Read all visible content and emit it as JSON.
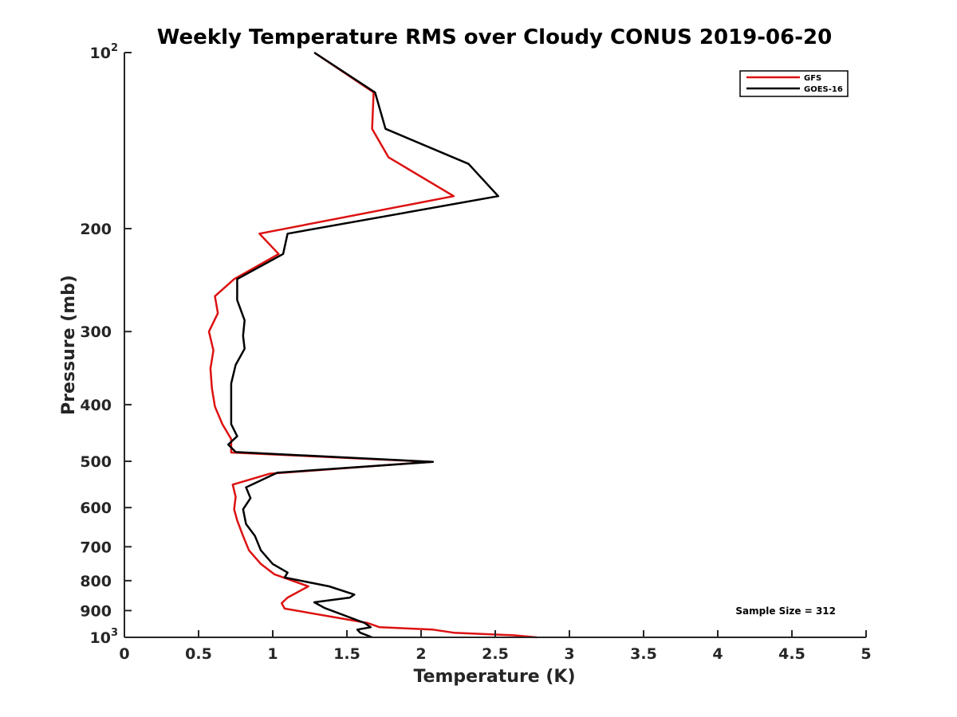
{
  "chart_data": {
    "type": "line",
    "title": "Weekly Temperature RMS over Cloudy CONUS 2019-06-20",
    "xlabel": "Temperature (K)",
    "ylabel": "Pressure (mb)",
    "xlim": [
      0,
      5
    ],
    "ylim": [
      1000,
      100
    ],
    "y_scale": "log",
    "y_reversed": true,
    "x_ticks": [
      "0",
      "0.5",
      "1",
      "1.5",
      "2",
      "2.5",
      "3",
      "3.5",
      "4",
      "4.5",
      "5"
    ],
    "x_tick_values": [
      0,
      0.5,
      1,
      1.5,
      2,
      2.5,
      3,
      3.5,
      4,
      4.5,
      5
    ],
    "y_ticks": [
      {
        "value": 100,
        "base": "10",
        "exp": "2"
      },
      {
        "value": 200,
        "label": "200"
      },
      {
        "value": 300,
        "label": "300"
      },
      {
        "value": 400,
        "label": "400"
      },
      {
        "value": 500,
        "label": "500"
      },
      {
        "value": 600,
        "label": "600"
      },
      {
        "value": 700,
        "label": "700"
      },
      {
        "value": 800,
        "label": "800"
      },
      {
        "value": 900,
        "label": "900"
      },
      {
        "value": 1000,
        "base": "10",
        "exp": "3"
      }
    ],
    "legend_position": "top-right",
    "annotation": "Sample Size = 312",
    "series": [
      {
        "name": "GFS",
        "color": "#dd1111",
        "points": [
          [
            1.28,
            100
          ],
          [
            1.68,
            117
          ],
          [
            1.67,
            135
          ],
          [
            1.78,
            151
          ],
          [
            2.22,
            176
          ],
          [
            0.91,
            204
          ],
          [
            1.04,
            221
          ],
          [
            0.74,
            244
          ],
          [
            0.61,
            261
          ],
          [
            0.63,
            279
          ],
          [
            0.57,
            300
          ],
          [
            0.6,
            323
          ],
          [
            0.58,
            347
          ],
          [
            0.59,
            375
          ],
          [
            0.61,
            403
          ],
          [
            0.66,
            432
          ],
          [
            0.72,
            458
          ],
          [
            0.72,
            475
          ],
          [
            0.72,
            483
          ],
          [
            2.07,
            501
          ],
          [
            0.98,
            525
          ],
          [
            0.73,
            548
          ],
          [
            0.75,
            575
          ],
          [
            0.74,
            604
          ],
          [
            0.76,
            631
          ],
          [
            0.8,
            671
          ],
          [
            0.84,
            710
          ],
          [
            0.92,
            749
          ],
          [
            1.01,
            780
          ],
          [
            1.24,
            818
          ],
          [
            1.1,
            855
          ],
          [
            1.06,
            874
          ],
          [
            1.08,
            893
          ],
          [
            1.64,
            945
          ],
          [
            1.72,
            961
          ],
          [
            2.08,
            970
          ],
          [
            2.22,
            982
          ],
          [
            2.62,
            992
          ],
          [
            2.78,
            1000
          ]
        ]
      },
      {
        "name": "GOES-16",
        "color": "#000000",
        "points": [
          [
            1.28,
            100
          ],
          [
            1.69,
            117
          ],
          [
            1.76,
            135
          ],
          [
            2.32,
            155
          ],
          [
            2.52,
            176
          ],
          [
            1.1,
            204
          ],
          [
            1.07,
            221
          ],
          [
            0.76,
            244
          ],
          [
            0.76,
            265
          ],
          [
            0.81,
            287
          ],
          [
            0.8,
            305
          ],
          [
            0.81,
            321
          ],
          [
            0.75,
            342
          ],
          [
            0.72,
            368
          ],
          [
            0.72,
            403
          ],
          [
            0.72,
            432
          ],
          [
            0.76,
            453
          ],
          [
            0.7,
            468
          ],
          [
            0.75,
            482
          ],
          [
            2.08,
            501
          ],
          [
            1.03,
            523
          ],
          [
            0.82,
            554
          ],
          [
            0.85,
            578
          ],
          [
            0.8,
            604
          ],
          [
            0.82,
            640
          ],
          [
            0.88,
            671
          ],
          [
            0.92,
            710
          ],
          [
            1.0,
            749
          ],
          [
            1.1,
            775
          ],
          [
            1.08,
            790
          ],
          [
            1.38,
            818
          ],
          [
            1.55,
            845
          ],
          [
            1.52,
            855
          ],
          [
            1.28,
            871
          ],
          [
            1.35,
            891
          ],
          [
            1.62,
            945
          ],
          [
            1.66,
            961
          ],
          [
            1.57,
            970
          ],
          [
            1.59,
            982
          ],
          [
            1.67,
            1000
          ]
        ]
      }
    ]
  }
}
